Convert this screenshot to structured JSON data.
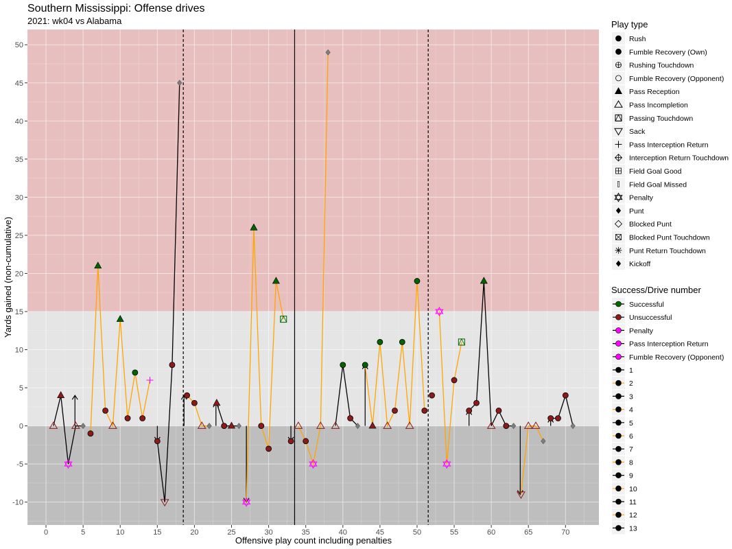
{
  "chart_data": {
    "type": "scatter",
    "title": "Southern Mississippi: Offense drives",
    "subtitle": "2021: wk04 vs Alabama",
    "xlabel": "Offensive play count including penalties",
    "ylabel": "Yards gained (non-cumulative)",
    "xlim": [
      -2.5,
      74.5
    ],
    "ylim": [
      -13,
      52
    ],
    "x_ticks": [
      0,
      5,
      10,
      15,
      20,
      25,
      30,
      35,
      40,
      45,
      50,
      55,
      60,
      65,
      70
    ],
    "y_ticks": [
      -10,
      -5,
      0,
      5,
      10,
      15,
      20,
      25,
      30,
      35,
      40,
      45,
      50
    ],
    "bands": [
      {
        "from": 15,
        "to": 52,
        "color": "#e8bfbf"
      },
      {
        "from": 0,
        "to": 15,
        "color": "#e5e5e5"
      },
      {
        "from": -13,
        "to": 0,
        "color": "#bebebe"
      }
    ],
    "vlines": [
      {
        "x": 18.5,
        "style": "dashed"
      },
      {
        "x": 33.5,
        "style": "solid"
      },
      {
        "x": 51.5,
        "style": "dashed"
      }
    ],
    "drives": [
      {
        "name": "1",
        "color": "#000000",
        "points": [
          [
            1,
            0,
            "pass_incomplete",
            "unsuccessful"
          ],
          [
            2,
            4,
            "pass_reception",
            "unsuccessful"
          ],
          [
            3,
            -5,
            "penalty",
            "penalty"
          ],
          [
            4,
            0,
            "pass_incomplete",
            "unsuccessful"
          ],
          [
            5,
            0,
            "punt",
            "none"
          ]
        ]
      },
      {
        "name": "2",
        "color": "#FFA500",
        "points": [
          [
            6,
            -1,
            "rush",
            "unsuccessful"
          ],
          [
            7,
            21,
            "pass_reception",
            "successful"
          ],
          [
            8,
            2,
            "rush",
            "unsuccessful"
          ],
          [
            9,
            0,
            "pass_incomplete",
            "unsuccessful"
          ],
          [
            10,
            14,
            "pass_reception",
            "successful"
          ],
          [
            11,
            1,
            "rush",
            "unsuccessful"
          ],
          [
            12,
            7,
            "rush",
            "successful"
          ],
          [
            13,
            1,
            "rush",
            "unsuccessful"
          ],
          [
            14,
            6,
            "pass_interception_return",
            "penalty"
          ]
        ]
      },
      {
        "name": "3",
        "color": "#000000",
        "points": [
          [
            15,
            -2,
            "rush",
            "unsuccessful"
          ],
          [
            16,
            -10,
            "sack",
            "unsuccessful"
          ],
          [
            17,
            8,
            "rush",
            "unsuccessful"
          ],
          [
            18,
            45,
            "punt",
            "none"
          ]
        ]
      },
      {
        "name": "4",
        "color": "#FFA500",
        "points": [
          [
            19,
            4,
            "rush",
            "unsuccessful"
          ],
          [
            20,
            3,
            "rush",
            "unsuccessful"
          ],
          [
            21,
            0,
            "pass_incomplete",
            "unsuccessful"
          ],
          [
            22,
            0,
            "punt",
            "none"
          ]
        ]
      },
      {
        "name": "5",
        "color": "#000000",
        "points": [
          [
            23,
            3,
            "pass_reception",
            "unsuccessful"
          ],
          [
            24,
            0,
            "rush",
            "unsuccessful"
          ],
          [
            25,
            0,
            "pass_reception",
            "unsuccessful"
          ],
          [
            26,
            0,
            "punt",
            "none"
          ]
        ]
      },
      {
        "name": "6",
        "color": "#FFA500",
        "points": [
          [
            27,
            -10,
            "penalty",
            "penalty"
          ],
          [
            28,
            26,
            "pass_reception",
            "successful"
          ],
          [
            29,
            0,
            "rush",
            "unsuccessful"
          ],
          [
            30,
            -3,
            "rush",
            "unsuccessful"
          ],
          [
            31,
            19,
            "pass_reception",
            "successful"
          ],
          [
            32,
            14,
            "passing_touchdown",
            "successful"
          ]
        ]
      },
      {
        "name": "7",
        "color": "#000000",
        "points": [
          [
            33,
            -2,
            "rush",
            "unsuccessful"
          ]
        ]
      },
      {
        "name": "8",
        "color": "#FFA500",
        "points": [
          [
            34,
            0,
            "pass_incomplete",
            "unsuccessful"
          ],
          [
            35,
            -2,
            "rush",
            "unsuccessful"
          ],
          [
            36,
            -5,
            "penalty",
            "penalty"
          ],
          [
            37,
            0,
            "pass_incomplete",
            "unsuccessful"
          ],
          [
            38,
            49,
            "punt",
            "none"
          ]
        ]
      },
      {
        "name": "9",
        "color": "#000000",
        "points": [
          [
            39,
            0,
            "pass_incomplete",
            "unsuccessful"
          ],
          [
            40,
            8,
            "rush",
            "successful"
          ],
          [
            41,
            1,
            "rush",
            "unsuccessful"
          ],
          [
            42,
            0,
            "punt",
            "none"
          ]
        ]
      },
      {
        "name": "10",
        "color": "#FFA500",
        "points": [
          [
            43,
            8,
            "rush",
            "successful"
          ],
          [
            44,
            0,
            "pass_reception",
            "unsuccessful"
          ],
          [
            45,
            11,
            "rush",
            "successful"
          ],
          [
            46,
            0,
            "pass_incomplete",
            "unsuccessful"
          ],
          [
            47,
            2,
            "rush",
            "unsuccessful"
          ],
          [
            48,
            11,
            "rush",
            "successful"
          ],
          [
            49,
            0,
            "pass_incomplete",
            "unsuccessful"
          ],
          [
            50,
            19,
            "rush",
            "successful"
          ],
          [
            51,
            2,
            "rush",
            "unsuccessful"
          ]
        ]
      },
      {
        "name": "11",
        "color": "#000000",
        "points": [
          [
            52,
            4,
            "rush",
            "unsuccessful"
          ]
        ]
      },
      {
        "name": "12",
        "color": "#FFA500",
        "points": [
          [
            53,
            15,
            "penalty",
            "penalty"
          ],
          [
            54,
            -5,
            "penalty",
            "penalty"
          ],
          [
            55,
            6,
            "rush",
            "unsuccessful"
          ],
          [
            56,
            11,
            "passing_touchdown",
            "successful"
          ]
        ]
      },
      {
        "name": "13",
        "color": "#000000",
        "points": [
          [
            57,
            2,
            "rush",
            "unsuccessful"
          ],
          [
            58,
            3,
            "rush",
            "unsuccessful"
          ],
          [
            59,
            19,
            "pass_reception",
            "successful"
          ],
          [
            60,
            0,
            "pass_incomplete",
            "unsuccessful"
          ],
          [
            61,
            2,
            "rush",
            "unsuccessful"
          ],
          [
            62,
            0,
            "rush",
            "unsuccessful"
          ],
          [
            63,
            0,
            "punt",
            "none"
          ]
        ]
      },
      {
        "name": "",
        "color": "#FFA500",
        "points": [
          [
            64,
            -9,
            "sack",
            "unsuccessful"
          ],
          [
            65,
            0,
            "pass_incomplete",
            "unsuccessful"
          ],
          [
            66,
            0,
            "pass_incomplete",
            "unsuccessful"
          ],
          [
            67,
            -2,
            "punt",
            "none"
          ]
        ]
      },
      {
        "name": "",
        "color": "#000000",
        "points": [
          [
            68,
            1,
            "rush",
            "unsuccessful"
          ],
          [
            69,
            1,
            "rush",
            "unsuccessful"
          ],
          [
            70,
            4,
            "rush",
            "unsuccessful"
          ],
          [
            71,
            0,
            "punt",
            "none"
          ]
        ]
      }
    ],
    "arrows": [
      {
        "x": 3.9,
        "from": 0,
        "to": 4,
        "dir": "up"
      },
      {
        "x": 15,
        "from": 0,
        "to": -2,
        "dir": "down"
      },
      {
        "x": 18.6,
        "from": 0,
        "to": 4,
        "dir": "up"
      },
      {
        "x": 22.9,
        "from": 0,
        "to": 3,
        "dir": "up"
      },
      {
        "x": 27,
        "from": 0,
        "to": -10,
        "dir": "down"
      },
      {
        "x": 33,
        "from": 0,
        "to": -2,
        "dir": "down"
      },
      {
        "x": 43,
        "from": 0,
        "to": 8,
        "dir": "up"
      },
      {
        "x": 57,
        "from": 0,
        "to": 2,
        "dir": "up"
      },
      {
        "x": 63.9,
        "from": 0,
        "to": -9,
        "dir": "down"
      },
      {
        "x": 68,
        "from": 0,
        "to": 1,
        "dir": "up"
      }
    ],
    "fill_colors": {
      "successful": "#006400",
      "unsuccessful": "#8B1A1A",
      "penalty": "#FF00FF",
      "none": "#7f7f7f"
    },
    "legend": {
      "placement": "right",
      "play_type_title": "Play type",
      "play_types": [
        {
          "label": "Rush",
          "shape": "circle-filled"
        },
        {
          "label": "Fumble Recovery (Own)",
          "shape": "circle-filled"
        },
        {
          "label": "Rushing Touchdown",
          "shape": "circle-plus"
        },
        {
          "label": "Fumble Recovery (Opponent)",
          "shape": "circle-open"
        },
        {
          "label": "Pass Reception",
          "shape": "triangle-filled"
        },
        {
          "label": "Pass Incompletion",
          "shape": "triangle-open"
        },
        {
          "label": "Passing Touchdown",
          "shape": "square-triangle"
        },
        {
          "label": "Sack",
          "shape": "triangle-down-open"
        },
        {
          "label": "Pass Interception Return",
          "shape": "plus"
        },
        {
          "label": "Interception Return Touchdown",
          "shape": "diamond-plus"
        },
        {
          "label": "Field Goal Good",
          "shape": "square-plus"
        },
        {
          "label": "Field Goal Missed",
          "shape": "bar-open"
        },
        {
          "label": "Penalty",
          "shape": "star-of-david"
        },
        {
          "label": "Punt",
          "shape": "diamond-filled"
        },
        {
          "label": "Blocked Punt",
          "shape": "diamond-open"
        },
        {
          "label": "Blocked Punt Touchdown",
          "shape": "square-x"
        },
        {
          "label": "Punt Return Touchdown",
          "shape": "asterisk"
        },
        {
          "label": "Kickoff",
          "shape": "diamond-filled"
        }
      ],
      "success_title": "Success/Drive number",
      "success_items": [
        {
          "label": "Successful",
          "color": "#006400",
          "line": "#000000"
        },
        {
          "label": "Unsuccessful",
          "color": "#8B1A1A",
          "line": "#000000"
        },
        {
          "label": "Penalty",
          "color": "#FF00FF",
          "line": "#000000"
        },
        {
          "label": "Pass Interception Return",
          "color": "#FF00FF",
          "line": "#000000"
        },
        {
          "label": "Fumble Recovery (Opponent)",
          "color": "#FF00FF",
          "line": "#000000"
        },
        {
          "label": "1",
          "color": "#000000",
          "line": "#000000"
        },
        {
          "label": "2",
          "color": "#000000",
          "line": "#FFA500"
        },
        {
          "label": "3",
          "color": "#000000",
          "line": "#000000"
        },
        {
          "label": "4",
          "color": "#000000",
          "line": "#FFA500"
        },
        {
          "label": "5",
          "color": "#000000",
          "line": "#000000"
        },
        {
          "label": "6",
          "color": "#000000",
          "line": "#FFA500"
        },
        {
          "label": "7",
          "color": "#000000",
          "line": "#000000"
        },
        {
          "label": "8",
          "color": "#000000",
          "line": "#FFA500"
        },
        {
          "label": "9",
          "color": "#000000",
          "line": "#000000"
        },
        {
          "label": "10",
          "color": "#000000",
          "line": "#FFA500"
        },
        {
          "label": "11",
          "color": "#000000",
          "line": "#000000"
        },
        {
          "label": "12",
          "color": "#000000",
          "line": "#FFA500"
        },
        {
          "label": "13",
          "color": "#000000",
          "line": "#000000"
        }
      ]
    }
  }
}
